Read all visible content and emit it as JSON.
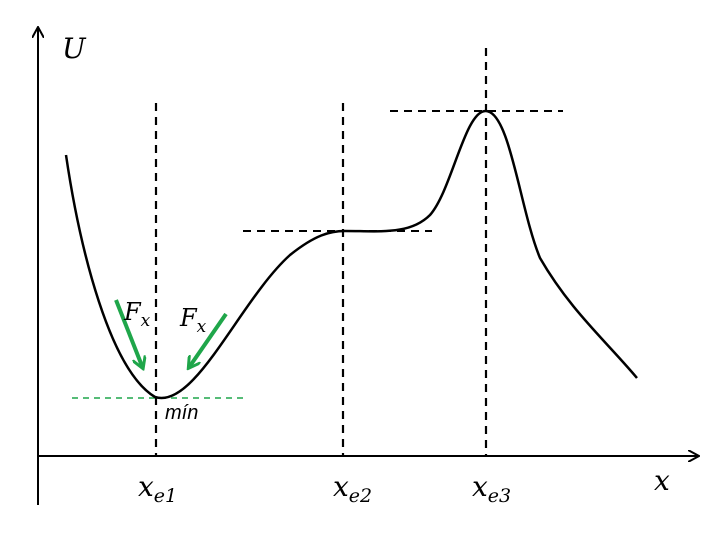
{
  "axes": {
    "y_label": "U",
    "x_label": "x"
  },
  "equilibria": [
    {
      "symbol": "x",
      "subscript": "e1"
    },
    {
      "symbol": "x",
      "subscript": "e2"
    },
    {
      "symbol": "x",
      "subscript": "e3"
    }
  ],
  "annotations": {
    "force_left": {
      "symbol": "F",
      "subscript": "x"
    },
    "force_right": {
      "symbol": "F",
      "subscript": "x"
    },
    "minimum_label": "mín"
  },
  "colors": {
    "curve": "#000000",
    "dashed": "#000000",
    "force_arrow": "#1fa64a",
    "min_line": "#1fa64a"
  }
}
